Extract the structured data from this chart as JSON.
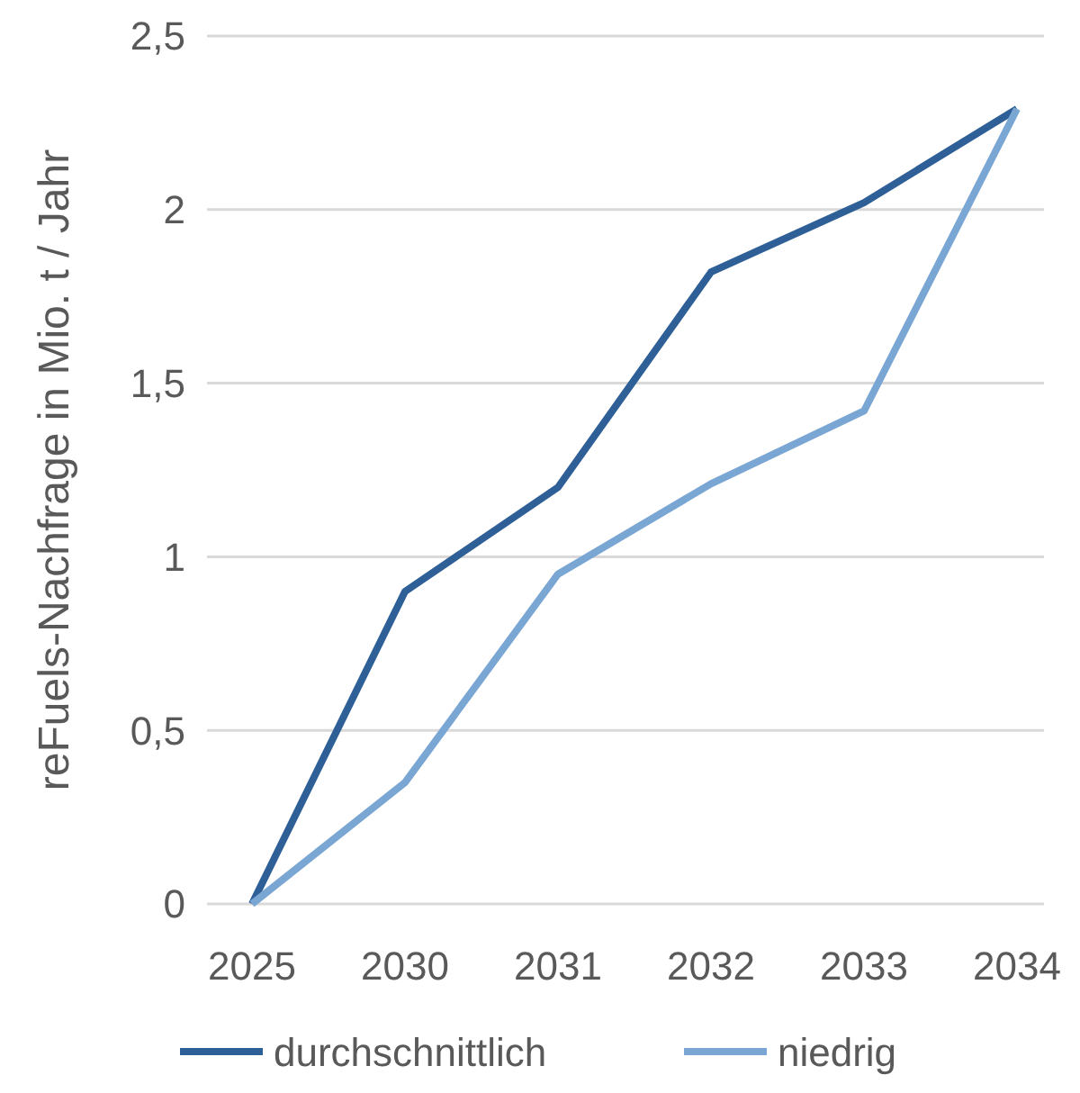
{
  "chart_data": {
    "type": "line",
    "ylabel": "reFuels-Nachfrage in Mio. t / Jahr",
    "categories": [
      "2025",
      "2030",
      "2031",
      "2032",
      "2033",
      "2034"
    ],
    "series": [
      {
        "name": "durchschnittlich",
        "color": "#2e5f96",
        "values": [
          0,
          0.9,
          1.2,
          1.82,
          2.02,
          2.29
        ]
      },
      {
        "name": "niedrig",
        "color": "#7aa6d4",
        "values": [
          0,
          0.35,
          0.95,
          1.21,
          1.42,
          2.29
        ]
      }
    ],
    "ylim": [
      0,
      2.5
    ],
    "yticks": [
      {
        "value": 0,
        "label": "0"
      },
      {
        "value": 0.5,
        "label": "0,5"
      },
      {
        "value": 1,
        "label": "1"
      },
      {
        "value": 1.5,
        "label": "1,5"
      },
      {
        "value": 2,
        "label": "2"
      },
      {
        "value": 2.5,
        "label": "2,5"
      }
    ],
    "grid": "y",
    "legend": "bottom",
    "marker": "none",
    "line_style": "solid"
  }
}
